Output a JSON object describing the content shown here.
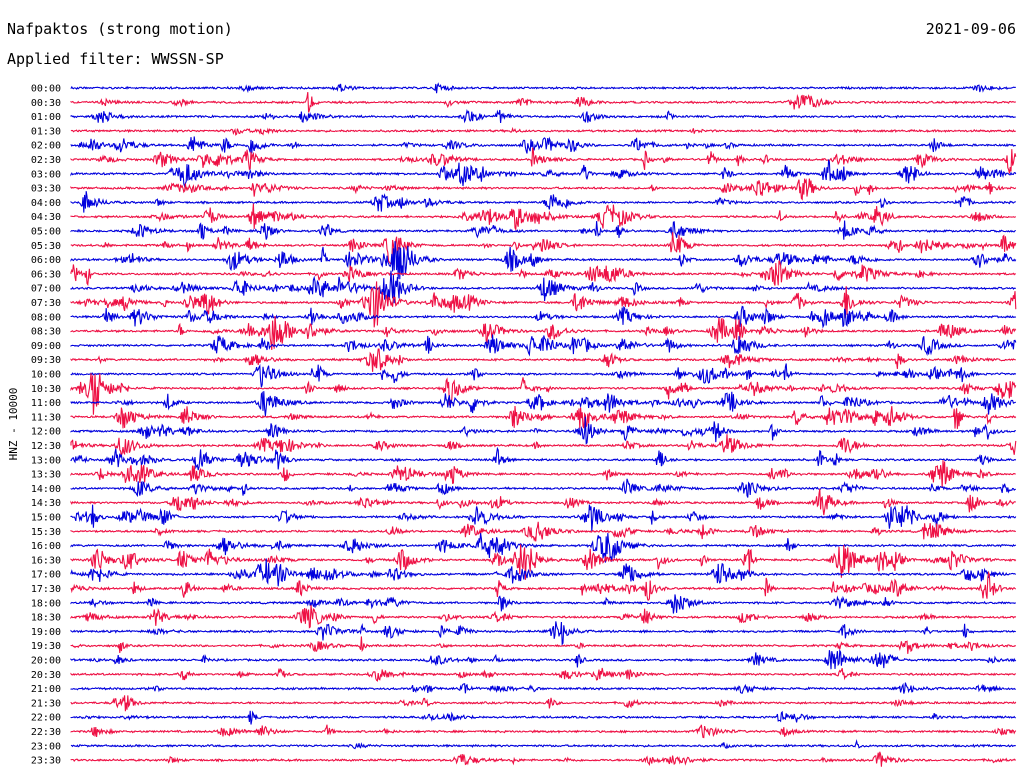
{
  "header": {
    "title": "Nafpaktos (strong motion)",
    "date": "2021-09-06",
    "filter": "Applied filter: WWSSN-SP"
  },
  "chart_data": {
    "type": "line",
    "title": "Nafpaktos (strong motion)",
    "ylabel": "HNZ - 10000",
    "xlabel": "",
    "row_labels": [
      "00:00",
      "00:30",
      "01:00",
      "01:30",
      "02:00",
      "02:30",
      "03:00",
      "03:30",
      "04:00",
      "04:30",
      "05:00",
      "05:30",
      "06:00",
      "06:30",
      "07:00",
      "07:30",
      "08:00",
      "08:30",
      "09:00",
      "09:30",
      "10:00",
      "10:30",
      "11:00",
      "11:30",
      "12:00",
      "12:30",
      "13:00",
      "13:30",
      "14:00",
      "14:30",
      "15:00",
      "15:30",
      "16:00",
      "16:30",
      "17:00",
      "17:30",
      "18:00",
      "18:30",
      "19:00",
      "19:30",
      "20:00",
      "20:30",
      "21:00",
      "21:30",
      "22:00",
      "22:30",
      "23:00",
      "23:30"
    ],
    "colors": [
      "#0000dd",
      "#ee1044"
    ],
    "grid": false,
    "activity": [
      1,
      2,
      2,
      1,
      4,
      4,
      6,
      4,
      4,
      5,
      5,
      5,
      5,
      6,
      5,
      5,
      5,
      5,
      5,
      4,
      5,
      6,
      5,
      5,
      5,
      4,
      4,
      4,
      4,
      4,
      5,
      4,
      5,
      5,
      5,
      4,
      3,
      4,
      3,
      3,
      3,
      3,
      2,
      2,
      2,
      2,
      1,
      2
    ]
  }
}
